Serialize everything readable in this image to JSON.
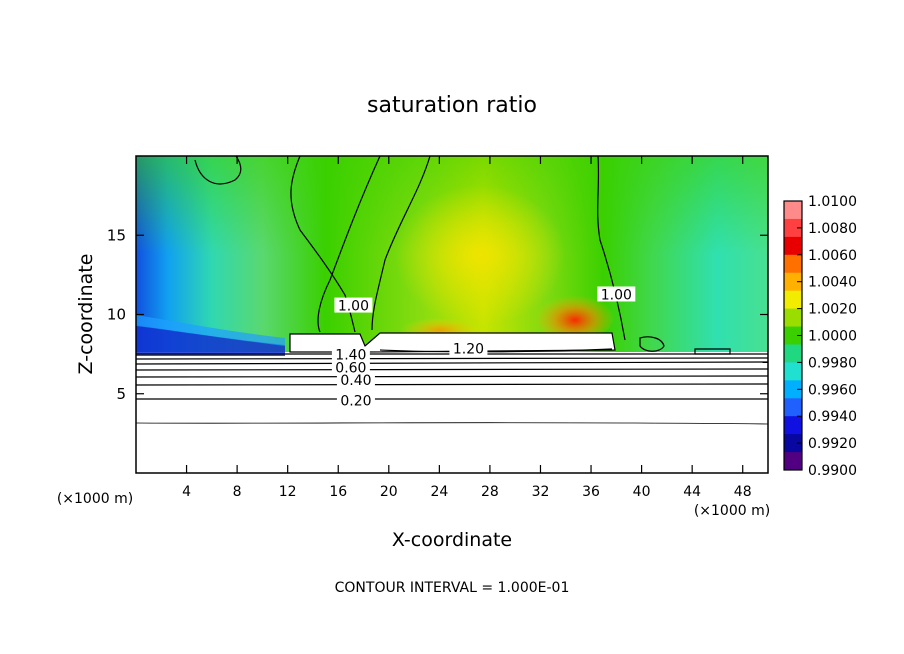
{
  "chart_data": {
    "type": "heatmap",
    "title": "saturation ratio",
    "xlabel": "X-coordinate",
    "ylabel": "Z-coordinate",
    "x_unit_label": "(×1000 m)",
    "x_unit_label_right": "(×1000 m)",
    "xlim": [
      0,
      50
    ],
    "ylim": [
      0,
      20
    ],
    "xticks": [
      4,
      8,
      12,
      16,
      20,
      24,
      28,
      32,
      36,
      40,
      44,
      48
    ],
    "yticks": [
      5,
      10,
      15
    ],
    "footer": "CONTOUR INTERVAL = 1.000E-01",
    "colorbar": {
      "ticks": [
        "1.0100",
        "1.0080",
        "1.0060",
        "1.0040",
        "1.0020",
        "1.0000",
        "0.9980",
        "0.9960",
        "0.9940",
        "0.9920",
        "0.9900"
      ],
      "colors": [
        "#ff8a8a",
        "#ff4040",
        "#e80000",
        "#ff7000",
        "#ffb000",
        "#f2ec00",
        "#9ade00",
        "#3ad000",
        "#20d880",
        "#20e0d0",
        "#00b0ff",
        "#2060ff",
        "#1010e0",
        "#0808a0",
        "#500080"
      ]
    },
    "contour_labels": [
      {
        "text": "0.20",
        "x": 17.4,
        "z": 4.5
      },
      {
        "text": "0.40",
        "x": 17.4,
        "z": 5.8
      },
      {
        "text": "0.60",
        "x": 17.0,
        "z": 6.6
      },
      {
        "text": "1.40",
        "x": 17.0,
        "z": 7.4
      },
      {
        "text": "1.20",
        "x": 26.3,
        "z": 7.8
      },
      {
        "text": "1.00",
        "x": 38.0,
        "z": 11.2
      },
      {
        "text": "1.00",
        "x": 17.2,
        "z": 10.5
      }
    ]
  }
}
